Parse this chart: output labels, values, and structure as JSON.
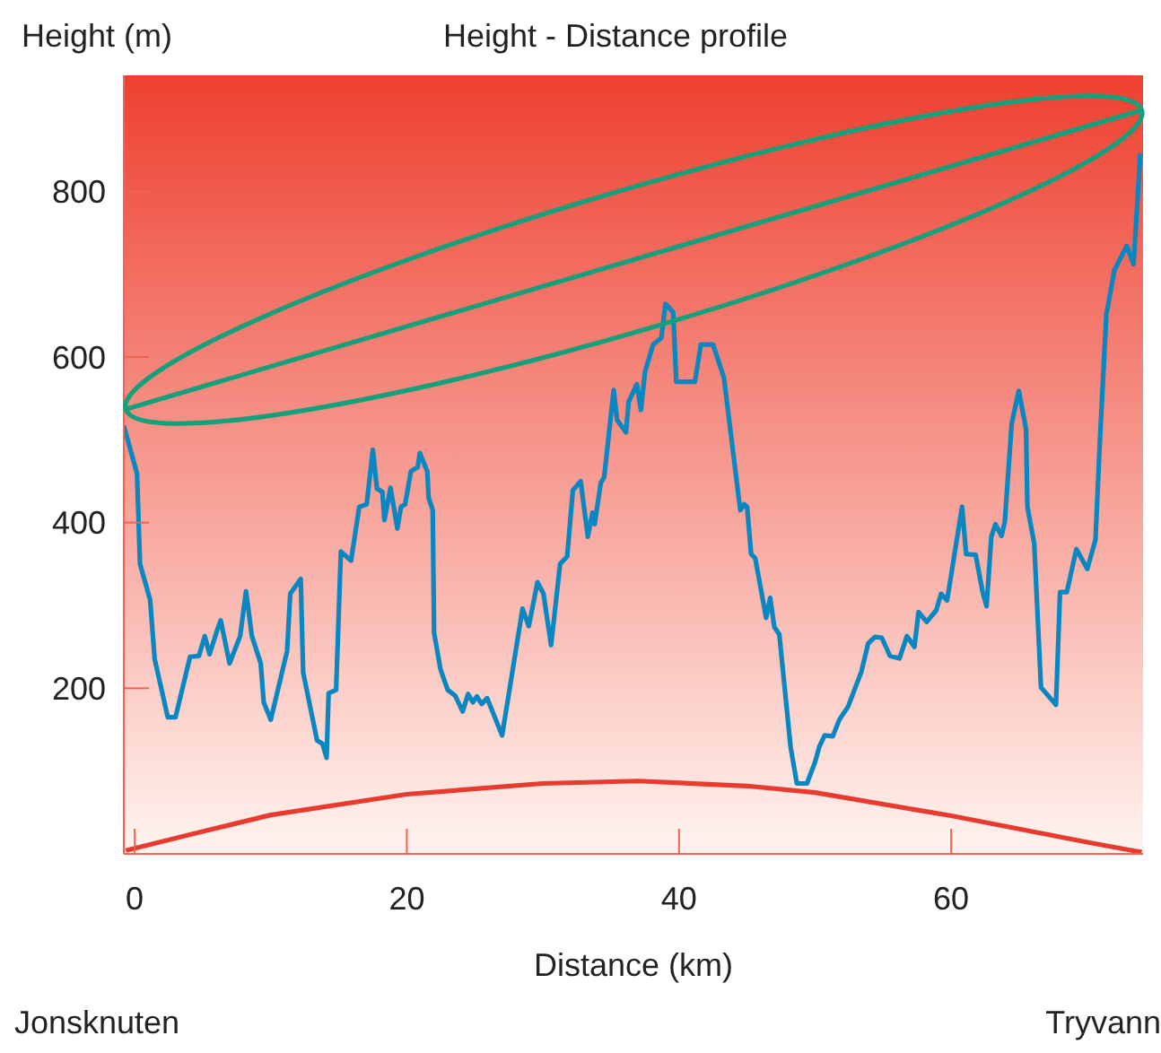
{
  "chart_data": {
    "type": "line",
    "title": "Height - Distance profile",
    "xlabel": "Distance (km)",
    "ylabel": "Height (m)",
    "xlim": [
      -0.8,
      74.1
    ],
    "ylim": [
      0,
      940
    ],
    "xticks": [
      0,
      20,
      40,
      60
    ],
    "yticks": [
      200,
      400,
      600,
      800
    ],
    "grid": false,
    "marker": "none",
    "line_style": "solid",
    "annotations": [
      "Jonsknuten",
      "Tryvann"
    ],
    "series": [
      {
        "type": "line",
        "color": "#0a86c0",
        "x": [
          -0.8,
          0.17,
          0.39,
          1.13,
          1.47,
          2.43,
          3.0,
          4.07,
          4.72,
          5.15,
          5.5,
          6.0,
          6.32,
          6.97,
          7.75,
          8.18,
          8.61,
          9.26,
          9.48,
          10.0,
          11.2,
          11.43,
          12.2,
          12.38,
          13.4,
          13.8,
          14.1,
          14.25,
          14.8,
          15.15,
          15.9,
          16.5,
          17.05,
          17.5,
          17.8,
          18.2,
          18.35,
          18.8,
          19.3,
          19.57,
          19.87,
          20.3,
          20.8,
          20.95,
          21.5,
          21.6,
          21.9,
          22.0,
          22.47,
          23.0,
          23.55,
          24.1,
          24.5,
          24.85,
          25.15,
          25.5,
          25.9,
          27.0,
          28.5,
          28.96,
          29.6,
          30.04,
          30.6,
          31.26,
          31.78,
          32.2,
          32.77,
          33.3,
          33.64,
          33.8,
          34.25,
          34.5,
          35.2,
          35.45,
          36.1,
          36.3,
          36.9,
          37.2,
          37.5,
          38.1,
          38.7,
          39.0,
          39.57,
          39.8,
          41.17,
          41.6,
          42.5,
          43.3,
          44.5,
          44.8,
          45.0,
          45.3,
          45.6,
          46.4,
          46.7,
          47.0,
          47.37,
          48.2,
          48.66,
          49.4,
          50.0,
          50.3,
          50.7,
          51.3,
          51.78,
          52.43,
          53.4,
          53.9,
          54.4,
          54.9,
          55.5,
          56.2,
          56.75,
          57.3,
          57.6,
          58.2,
          58.9,
          59.26,
          59.7,
          60.8,
          61.1,
          61.8,
          62.3,
          62.6,
          62.95,
          63.25,
          63.7,
          63.94,
          64.45,
          64.97,
          65.5,
          65.6,
          66.1,
          66.6,
          67.7,
          68.0,
          68.5,
          69.2,
          70.0,
          70.6,
          70.95,
          71.4,
          72.0,
          72.9,
          73.4,
          73.9
        ],
        "values": [
          517,
          459,
          350,
          307,
          235,
          165,
          165,
          238,
          239,
          263,
          241,
          267,
          282,
          230,
          263,
          317,
          263,
          230,
          183,
          162,
          245,
          314,
          332,
          219,
          137,
          133,
          116,
          194,
          198,
          365,
          354,
          419,
          422,
          488,
          441,
          437,
          403,
          442,
          393,
          419,
          422,
          462,
          467,
          484,
          462,
          430,
          415,
          267,
          223,
          198,
          191,
          172,
          193,
          183,
          190,
          181,
          188,
          143,
          296,
          275,
          328,
          314,
          252,
          350,
          359,
          439,
          450,
          383,
          412,
          398,
          448,
          455,
          560,
          524,
          509,
          546,
          567,
          536,
          582,
          615,
          623,
          664,
          654,
          570,
          570,
          615,
          615,
          575,
          415,
          422,
          419,
          362,
          357,
          285,
          309,
          274,
          265,
          129,
          85,
          85,
          111,
          129,
          143,
          142,
          162,
          178,
          220,
          254,
          262,
          261,
          239,
          236,
          263,
          250,
          292,
          280,
          294,
          314,
          306,
          419,
          362,
          361,
          317,
          299,
          383,
          398,
          384,
          401,
          520,
          559,
          513,
          419,
          375,
          201,
          180,
          316,
          316,
          368,
          344,
          379,
          506,
          651,
          705,
          734,
          712,
          846
        ]
      },
      {
        "type": "line",
        "color": "#13a07a",
        "x": [
          -0.65,
          74.0
        ],
        "values": [
          537,
          898
        ]
      },
      {
        "type": "line",
        "color": "#e83a2e",
        "x": [
          -0.65,
          5,
          10,
          20,
          30,
          37,
          45,
          50,
          60,
          65,
          70,
          74.0
        ],
        "values": [
          4,
          27,
          47,
          72,
          85,
          88,
          82,
          74,
          46,
          30,
          14,
          2
        ]
      }
    ]
  }
}
